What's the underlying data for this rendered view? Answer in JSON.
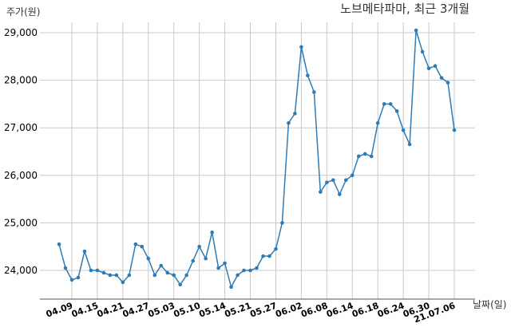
{
  "chart_data": {
    "type": "line",
    "title": "노브메타파마, 최근 3개월",
    "ylabel": "주가(원)",
    "xlabel": "날짜(일)",
    "ylim": [
      23400,
      29300
    ],
    "yticks": [
      24000,
      25000,
      26000,
      27000,
      28000,
      29000
    ],
    "ytick_labels": [
      "24,000",
      "25,000",
      "26,000",
      "27,000",
      "28,000",
      "29,000"
    ],
    "xtick_labels": [
      "04.09",
      "04.15",
      "04.21",
      "04.27",
      "05.03",
      "05.10",
      "05.14",
      "05.21",
      "05.27",
      "06.02",
      "06.08",
      "06.14",
      "06.18",
      "06.24",
      "06.30",
      "21.07.06"
    ],
    "xtick_indices": [
      2,
      6,
      10,
      14,
      18,
      22,
      26,
      30,
      34,
      38,
      42,
      46,
      50,
      54,
      58,
      62
    ],
    "grid": true,
    "series": [
      {
        "color": "#2f7bb5",
        "values": [
          24550,
          24050,
          23800,
          23850,
          24400,
          24000,
          24000,
          23950,
          23900,
          23900,
          23750,
          23900,
          24550,
          24500,
          24250,
          23900,
          24100,
          23950,
          23900,
          23700,
          23900,
          24200,
          24500,
          24250,
          24800,
          24050,
          24150,
          23650,
          23900,
          24000,
          24000,
          24050,
          24300,
          24300,
          24450,
          25000,
          27100,
          27300,
          28700,
          28100,
          27750,
          25650,
          25850,
          25900,
          25600,
          25900,
          26000,
          26400,
          26450,
          26400,
          27100,
          27500,
          27500,
          27350,
          26950,
          26650,
          29050,
          28600,
          28250,
          28300,
          28050,
          27950,
          26950
        ]
      }
    ]
  }
}
